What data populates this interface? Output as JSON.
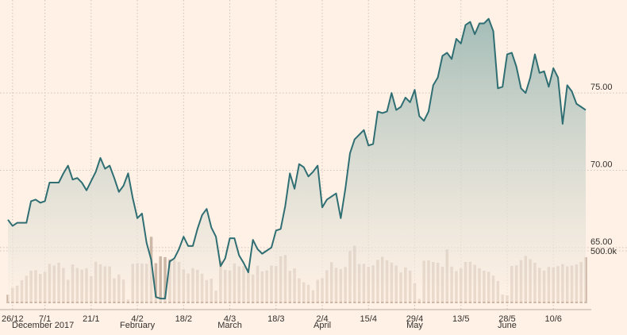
{
  "chart_data": {
    "type": "line",
    "title": "",
    "price_axis": {
      "ylim": [
        61.5,
        80.5
      ],
      "ticks": [
        65.0,
        70.0,
        75.0
      ],
      "tick_labels": [
        "65.00",
        "70.00",
        "75.00"
      ],
      "side": "right"
    },
    "volume_axis": {
      "ylim": [
        0,
        700000
      ],
      "ticks": [
        500000
      ],
      "tick_labels": [
        "500.0k"
      ],
      "side": "right"
    },
    "x_axis": {
      "tick_labels": [
        "26/12",
        "7/1",
        "21/1",
        "4/2",
        "18/2",
        "4/3",
        "18/3",
        "2/4",
        "15/4",
        "29/4",
        "13/5",
        "28/5",
        "10/6"
      ],
      "tick_index": [
        1,
        8,
        18,
        28,
        38,
        48,
        58,
        68,
        78,
        88,
        98,
        108,
        118
      ],
      "month_labels": [
        "December 2017",
        "February",
        "March",
        "April",
        "May",
        "June"
      ],
      "month_index": [
        1,
        28,
        48,
        68,
        88,
        108
      ]
    },
    "grid": true,
    "colors": {
      "background": "#fff1e5",
      "line": "#2f6e73",
      "area_top": "#9fbab5",
      "area_bottom": "#fff1e5",
      "volume": "#cdb8a8"
    },
    "series": [
      {
        "kind": "price",
        "values": [
          66.8,
          66.4,
          66.6,
          66.6,
          66.6,
          68.0,
          68.1,
          67.9,
          68.0,
          69.2,
          69.2,
          69.2,
          69.8,
          70.3,
          69.4,
          69.5,
          69.2,
          68.7,
          69.3,
          69.9,
          70.8,
          70.1,
          70.3,
          69.5,
          68.6,
          69.0,
          69.8,
          68.2,
          66.9,
          67.2,
          65.3,
          64.2,
          61.8,
          61.7,
          61.7,
          64.1,
          64.3,
          64.9,
          65.7,
          65.1,
          65.1,
          66.2,
          67.1,
          67.5,
          66.3,
          65.7,
          63.8,
          64.3,
          65.6,
          65.6,
          64.5,
          64.0,
          63.4,
          65.5,
          64.9,
          64.6,
          64.8,
          65.0,
          66.1,
          66.2,
          67.7,
          69.8,
          68.8,
          70.4,
          70.2,
          69.6,
          69.9,
          70.3,
          67.6,
          68.1,
          68.3,
          68.5,
          66.9,
          68.8,
          71.1,
          72.0,
          72.3,
          72.6,
          71.6,
          71.7,
          73.8,
          73.7,
          73.8,
          75.0,
          73.9,
          74.1,
          74.7,
          74.4,
          75.2,
          73.5,
          73.2,
          73.8,
          75.5,
          76.0,
          77.4,
          77.6,
          77.2,
          78.5,
          78.2,
          79.4,
          79.6,
          78.8,
          79.5,
          79.5,
          79.8,
          79.0,
          75.3,
          75.4,
          77.5,
          77.6,
          76.7,
          75.3,
          75.0,
          76.0,
          77.5,
          76.3,
          76.4,
          75.4,
          76.6,
          76.0,
          73.0,
          75.5,
          75.1,
          74.3,
          74.1,
          73.9
        ],
        "volume": [
          82000,
          148000,
          168000,
          220000,
          262000,
          310000,
          316000,
          280000,
          300000,
          376000,
          360000,
          386000,
          338000,
          224000,
          370000,
          336000,
          322000,
          334000,
          260000,
          396000,
          372000,
          352000,
          352000,
          238000,
          274000,
          226000,
          36000,
          376000,
          382000,
          378000,
          376000,
          634000,
          382000,
          448000,
          440000,
          418000,
          412000,
          394000,
          324000,
          284000,
          336000,
          320000,
          282000,
          222000,
          234000,
          120000,
          404000,
          318000,
          312000,
          380000,
          352000,
          354000,
          330000,
          274000,
          358000,
          304000,
          314000,
          360000,
          356000,
          448000,
          460000,
          310000,
          332000,
          238000,
          200000,
          176000,
          124000,
          224000,
          240000,
          316000,
          392000,
          338000,
          326000,
          346000,
          500000,
          548000,
          374000,
          376000,
          348000,
          362000,
          414000,
          444000,
          410000,
          388000,
          360000,
          294000,
          342000,
          310000,
          190000,
          42000,
          406000,
          408000,
          394000,
          386000,
          348000,
          514000,
          350000,
          306000,
          334000,
          394000,
          396000,
          366000,
          334000,
          310000,
          300000,
          264000,
          212000,
          82000,
          76000,
          356000,
          362000,
          412000,
          452000,
          420000,
          386000,
          338000,
          312000,
          346000,
          342000,
          354000,
          374000,
          352000,
          360000,
          370000,
          394000,
          440000
        ]
      }
    ]
  }
}
